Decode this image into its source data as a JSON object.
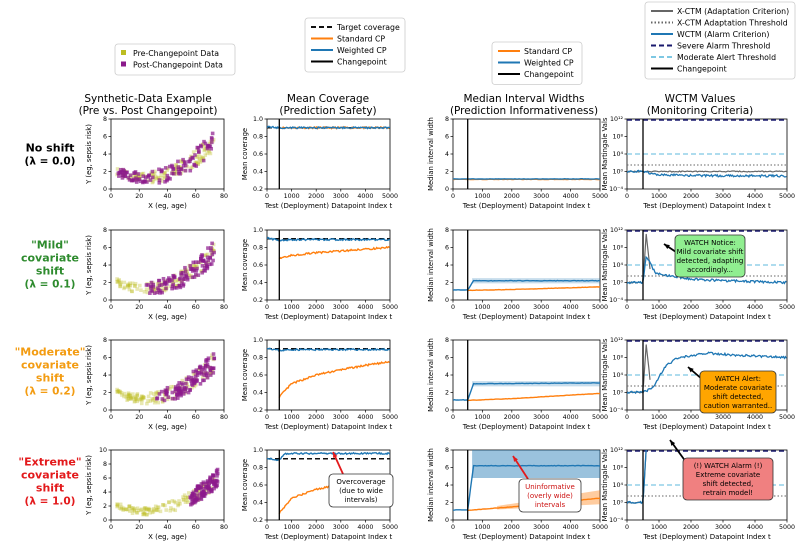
{
  "legends": {
    "scatter": [
      {
        "label": "Pre-Changepoint Data",
        "color": "#bcbd22"
      },
      {
        "label": "Post-Changepoint Data",
        "color": "#8b1a8b"
      }
    ],
    "coverage": [
      {
        "label": "Target coverage",
        "color": "#111111",
        "style": "dashed"
      },
      {
        "label": "Standard CP",
        "color": "#ff7f0e",
        "style": "solid"
      },
      {
        "label": "Weighted CP",
        "color": "#1f77b4",
        "style": "solid"
      },
      {
        "label": "Changepoint",
        "color": "#000000",
        "style": "solid"
      }
    ],
    "width": [
      {
        "label": "Standard CP",
        "color": "#ff7f0e",
        "style": "solid"
      },
      {
        "label": "Weighted CP",
        "color": "#1f77b4",
        "style": "solid"
      },
      {
        "label": "Changepoint",
        "color": "#000000",
        "style": "solid"
      }
    ],
    "wctm": [
      {
        "label": "X-CTM (Adaptation Criterion)",
        "color": "#666666",
        "style": "solid"
      },
      {
        "label": "X-CTM Adaptation Threshold",
        "color": "#666666",
        "style": "dotted"
      },
      {
        "label": "WCTM (Alarm Criterion)",
        "color": "#1f77b4",
        "style": "solid"
      },
      {
        "label": "Severe Alarm Threshold",
        "color": "#1a1a6e",
        "style": "dashed"
      },
      {
        "label": "Moderate Alert Threshold",
        "color": "#7ec8e3",
        "style": "dashed"
      },
      {
        "label": "Changepoint",
        "color": "#000000",
        "style": "solid"
      }
    ]
  },
  "columns": [
    {
      "title": "Synthetic-Data Example",
      "subtitle": "(Pre vs. Post Changepoint)"
    },
    {
      "title": "Mean Coverage",
      "subtitle": "(Prediction Safety)"
    },
    {
      "title": "Median Interval Widths",
      "subtitle": "(Prediction Informativeness)"
    },
    {
      "title": "WCTM Values",
      "subtitle": "(Monitoring Criteria)"
    }
  ],
  "rows": [
    {
      "title_lines": [
        "No shift"
      ],
      "lambda": "(λ = 0.0)",
      "color": "#000000"
    },
    {
      "title_lines": [
        "\"Mild\"",
        "covariate",
        "shift"
      ],
      "lambda": "(λ = 0.1)",
      "color": "#2e8b2e"
    },
    {
      "title_lines": [
        "\"Moderate\"",
        "covariate",
        "shift"
      ],
      "lambda": "(λ = 0.2)",
      "color": "#f39c12"
    },
    {
      "title_lines": [
        "\"Extreme\"",
        "covariate",
        "shift"
      ],
      "lambda": "(λ = 1.0)",
      "color": "#e31a1c"
    }
  ],
  "axes": {
    "scatter": {
      "xlabel": "X (eg, age)",
      "ylabel": "Y (eg, sepsis risk)",
      "xticks": [
        "0",
        "20",
        "40",
        "60",
        "80"
      ],
      "yticks": [
        "0",
        "2",
        "4",
        "6",
        "8"
      ]
    },
    "coverage": {
      "xlabel": "Test (Deployment) Datapoint Index t",
      "ylabel": "Mean coverage",
      "xticks": [
        "0",
        "1000",
        "2000",
        "3000",
        "4000",
        "5000"
      ],
      "yticks": [
        "0.2",
        "0.4",
        "0.6",
        "0.8",
        "1.0"
      ]
    },
    "width": {
      "xlabel": "Test (Deployment) Datapoint Index t",
      "ylabel": "Median interval width",
      "xticks": [
        "0",
        "1000",
        "2000",
        "3000",
        "4000",
        "5000"
      ],
      "yticks": [
        "0",
        "2",
        "4",
        "6",
        "8"
      ]
    },
    "wctm": {
      "xlabel": "Test (Deployment) Datapoint Index t",
      "ylabel": "Mean Martingale Vals",
      "xticks": [
        "0",
        "1000",
        "2000",
        "3000",
        "4000",
        "5000"
      ],
      "yticks": [
        "10⁻⁴",
        "10⁰",
        "10⁴",
        "10⁸",
        "10¹²"
      ]
    }
  },
  "annotations": {
    "mild_wctm": {
      "lines": [
        "WATCH Notice:",
        "Mild covariate shift",
        "detected, adapting",
        "accordingly..."
      ],
      "bg": "#90ee90"
    },
    "moderate_wctm": {
      "lines": [
        "WATCH Alert:",
        "Moderate covariate",
        "shift detected,",
        "caution warranted.."
      ],
      "bg": "#ffa500"
    },
    "extreme_wctm": {
      "lines": [
        "(!) WATCH Alarm (!)",
        "Extreme covariate",
        "shift detected,",
        "retrain model!"
      ],
      "bg": "#f08080"
    },
    "extreme_coverage": {
      "lines": [
        "Overcoverage",
        "(due to wide",
        "intervals)"
      ]
    },
    "extreme_width": {
      "lines": [
        "Uninformative",
        "(overly wide)",
        "intervals"
      ]
    }
  },
  "chart_data": [
    {
      "type": "scatter",
      "row": 0,
      "title": "Synthetic-Data Example",
      "xlim": [
        -5,
        88
      ],
      "ylim": [
        0,
        8
      ],
      "series": [
        {
          "name": "Pre-Changepoint Data",
          "x_range": [
            0,
            80
          ],
          "shape": "y = 2 - 0.06x + 0.0013x^2"
        },
        {
          "name": "Post-Changepoint Data",
          "x_range": [
            0,
            80
          ],
          "shape": "y = 2 - 0.06x + 0.0013x^2"
        }
      ]
    },
    {
      "type": "line",
      "row": 0,
      "title": "Mean Coverage",
      "xlim": [
        0,
        5000
      ],
      "ylim": [
        0.2,
        1.0
      ],
      "series": [
        {
          "name": "Standard CP",
          "points": [
            [
              500,
              0.9
            ],
            [
              5000,
              0.9
            ]
          ]
        },
        {
          "name": "Weighted CP",
          "points": [
            [
              0,
              0.91
            ],
            [
              500,
              0.9
            ],
            [
              5000,
              0.9
            ]
          ]
        }
      ],
      "target_coverage": 0.9,
      "changepoint": 500
    },
    {
      "type": "line",
      "row": 0,
      "title": "Median Interval Widths",
      "xlim": [
        0,
        5000
      ],
      "ylim": [
        0,
        8
      ],
      "series": [
        {
          "name": "Standard CP",
          "points": [
            [
              0,
              1.1
            ],
            [
              5000,
              1.1
            ]
          ]
        },
        {
          "name": "Weighted CP",
          "points": [
            [
              0,
              1.15
            ],
            [
              5000,
              1.15
            ]
          ]
        }
      ],
      "changepoint": 500
    },
    {
      "type": "line",
      "row": 0,
      "title": "WCTM Values",
      "yscale": "log",
      "ylim_log10": [
        -4,
        12
      ],
      "series": [
        {
          "name": "WCTM",
          "points_log10": [
            [
              0,
              0
            ],
            [
              500,
              0
            ],
            [
              1000,
              -0.8
            ],
            [
              3000,
              -1.0
            ],
            [
              5000,
              -1.0
            ]
          ]
        },
        {
          "name": "X-CTM",
          "points_log10": [
            [
              0,
              0
            ],
            [
              5000,
              0
            ]
          ]
        }
      ],
      "severe_threshold_log10": 12,
      "moderate_threshold_log10": 4,
      "xctm_threshold_log10": 1.5,
      "changepoint": 500
    },
    {
      "type": "scatter",
      "row": 1,
      "title": "Synthetic-Data Example",
      "xlim": [
        -5,
        88
      ],
      "ylim": [
        0,
        8
      ]
    },
    {
      "type": "line",
      "row": 1,
      "title": "Mean Coverage",
      "xlim": [
        0,
        5000
      ],
      "ylim": [
        0.2,
        1.0
      ],
      "series": [
        {
          "name": "Standard CP",
          "points": [
            [
              500,
              0.68
            ],
            [
              1000,
              0.71
            ],
            [
              2000,
              0.74
            ],
            [
              3000,
              0.76
            ],
            [
              4000,
              0.78
            ],
            [
              5000,
              0.8
            ]
          ]
        },
        {
          "name": "Weighted CP",
          "points": [
            [
              0,
              0.91
            ],
            [
              500,
              0.88
            ],
            [
              1000,
              0.89
            ],
            [
              5000,
              0.89
            ]
          ]
        }
      ],
      "target_coverage": 0.9,
      "changepoint": 500
    },
    {
      "type": "line",
      "row": 1,
      "title": "Median Interval Widths",
      "xlim": [
        0,
        5000
      ],
      "ylim": [
        0,
        8
      ],
      "series": [
        {
          "name": "Standard CP",
          "points": [
            [
              500,
              1.1
            ],
            [
              2000,
              1.2
            ],
            [
              5000,
              1.5
            ]
          ]
        },
        {
          "name": "Weighted CP",
          "points": [
            [
              0,
              1.15
            ],
            [
              500,
              1.15
            ],
            [
              700,
              2.2
            ],
            [
              5000,
              2.2
            ]
          ]
        }
      ],
      "changepoint": 500
    },
    {
      "type": "line",
      "row": 1,
      "title": "WCTM Values",
      "yscale": "log",
      "ylim_log10": [
        -4,
        12
      ],
      "series": [
        {
          "name": "WCTM",
          "points_log10": [
            [
              0,
              0
            ],
            [
              500,
              0
            ],
            [
              600,
              6
            ],
            [
              900,
              2
            ],
            [
              2000,
              0.8
            ],
            [
              3000,
              0.4
            ],
            [
              5000,
              0
            ]
          ]
        },
        {
          "name": "X-CTM",
          "points_log10": [
            [
              0,
              0
            ],
            [
              500,
              0
            ],
            [
              600,
              11
            ],
            [
              750,
              1
            ]
          ]
        }
      ],
      "severe_threshold_log10": 12,
      "moderate_threshold_log10": 4,
      "xctm_threshold_log10": 1.5,
      "changepoint": 500
    },
    {
      "type": "scatter",
      "row": 2,
      "title": "Synthetic-Data Example",
      "xlim": [
        -5,
        88
      ],
      "ylim": [
        0,
        8
      ]
    },
    {
      "type": "line",
      "row": 2,
      "title": "Mean Coverage",
      "xlim": [
        0,
        5000
      ],
      "ylim": [
        0.2,
        1.0
      ],
      "series": [
        {
          "name": "Standard CP",
          "points": [
            [
              500,
              0.35
            ],
            [
              1000,
              0.5
            ],
            [
              2000,
              0.6
            ],
            [
              3000,
              0.66
            ],
            [
              4000,
              0.71
            ],
            [
              5000,
              0.75
            ]
          ]
        },
        {
          "name": "Weighted CP",
          "points": [
            [
              0,
              0.91
            ],
            [
              500,
              0.88
            ],
            [
              1000,
              0.89
            ],
            [
              5000,
              0.89
            ]
          ]
        }
      ],
      "target_coverage": 0.9,
      "changepoint": 500
    },
    {
      "type": "line",
      "row": 2,
      "title": "Median Interval Widths",
      "xlim": [
        0,
        5000
      ],
      "ylim": [
        0,
        8
      ],
      "series": [
        {
          "name": "Standard CP",
          "points": [
            [
              500,
              1.1
            ],
            [
              2000,
              1.3
            ],
            [
              5000,
              1.9
            ]
          ]
        },
        {
          "name": "Weighted CP",
          "points": [
            [
              0,
              1.15
            ],
            [
              500,
              1.15
            ],
            [
              700,
              3.0
            ],
            [
              5000,
              3.1
            ]
          ]
        }
      ],
      "changepoint": 500
    },
    {
      "type": "line",
      "row": 2,
      "title": "WCTM Values",
      "yscale": "log",
      "ylim_log10": [
        -4,
        12
      ],
      "series": [
        {
          "name": "WCTM",
          "points_log10": [
            [
              0,
              0
            ],
            [
              500,
              0
            ],
            [
              800,
              1
            ],
            [
              1200,
              6
            ],
            [
              1600,
              8
            ],
            [
              2500,
              9
            ],
            [
              3500,
              8.5
            ],
            [
              5000,
              8
            ]
          ]
        },
        {
          "name": "X-CTM",
          "points_log10": [
            [
              0,
              0
            ],
            [
              500,
              0
            ],
            [
              600,
              11
            ],
            [
              750,
              1
            ]
          ]
        }
      ],
      "severe_threshold_log10": 12,
      "moderate_threshold_log10": 4,
      "xctm_threshold_log10": 1.5,
      "changepoint": 500
    },
    {
      "type": "scatter",
      "row": 3,
      "title": "Synthetic-Data Example",
      "xlim": [
        -5,
        88
      ],
      "ylim": [
        0,
        10
      ]
    },
    {
      "type": "line",
      "row": 3,
      "title": "Mean Coverage",
      "xlim": [
        0,
        5000
      ],
      "ylim": [
        0.2,
        1.0
      ],
      "series": [
        {
          "name": "Standard CP",
          "points": [
            [
              500,
              0.28
            ],
            [
              1000,
              0.45
            ],
            [
              2000,
              0.55
            ],
            [
              3000,
              0.61
            ],
            [
              4000,
              0.66
            ],
            [
              5000,
              0.7
            ]
          ]
        },
        {
          "name": "Weighted CP",
          "points": [
            [
              0,
              0.91
            ],
            [
              500,
              0.88
            ],
            [
              700,
              0.96
            ],
            [
              5000,
              0.96
            ]
          ]
        }
      ],
      "target_coverage": 0.9,
      "changepoint": 500
    },
    {
      "type": "line",
      "row": 3,
      "title": "Median Interval Widths",
      "xlim": [
        0,
        5000
      ],
      "ylim": [
        0,
        8
      ],
      "series": [
        {
          "name": "Standard CP",
          "points": [
            [
              500,
              1.1
            ],
            [
              2000,
              1.5
            ],
            [
              5000,
              2.5
            ]
          ]
        },
        {
          "name": "Weighted CP",
          "points": [
            [
              0,
              1.15
            ],
            [
              500,
              1.15
            ],
            [
              700,
              6.2
            ],
            [
              5000,
              6.2
            ]
          ]
        }
      ],
      "changepoint": 500
    },
    {
      "type": "line",
      "row": 3,
      "title": "WCTM Values",
      "yscale": "log",
      "ylim_log10": [
        -4,
        12
      ],
      "series": [
        {
          "name": "WCTM",
          "points_log10": [
            [
              0,
              0
            ],
            [
              500,
              0
            ],
            [
              600,
              12
            ]
          ]
        },
        {
          "name": "X-CTM",
          "points_log10": [
            [
              0,
              0
            ],
            [
              500,
              0
            ],
            [
              600,
              12
            ]
          ]
        }
      ],
      "severe_threshold_log10": 12,
      "moderate_threshold_log10": 4,
      "xctm_threshold_log10": 1.5,
      "changepoint": 500
    }
  ]
}
